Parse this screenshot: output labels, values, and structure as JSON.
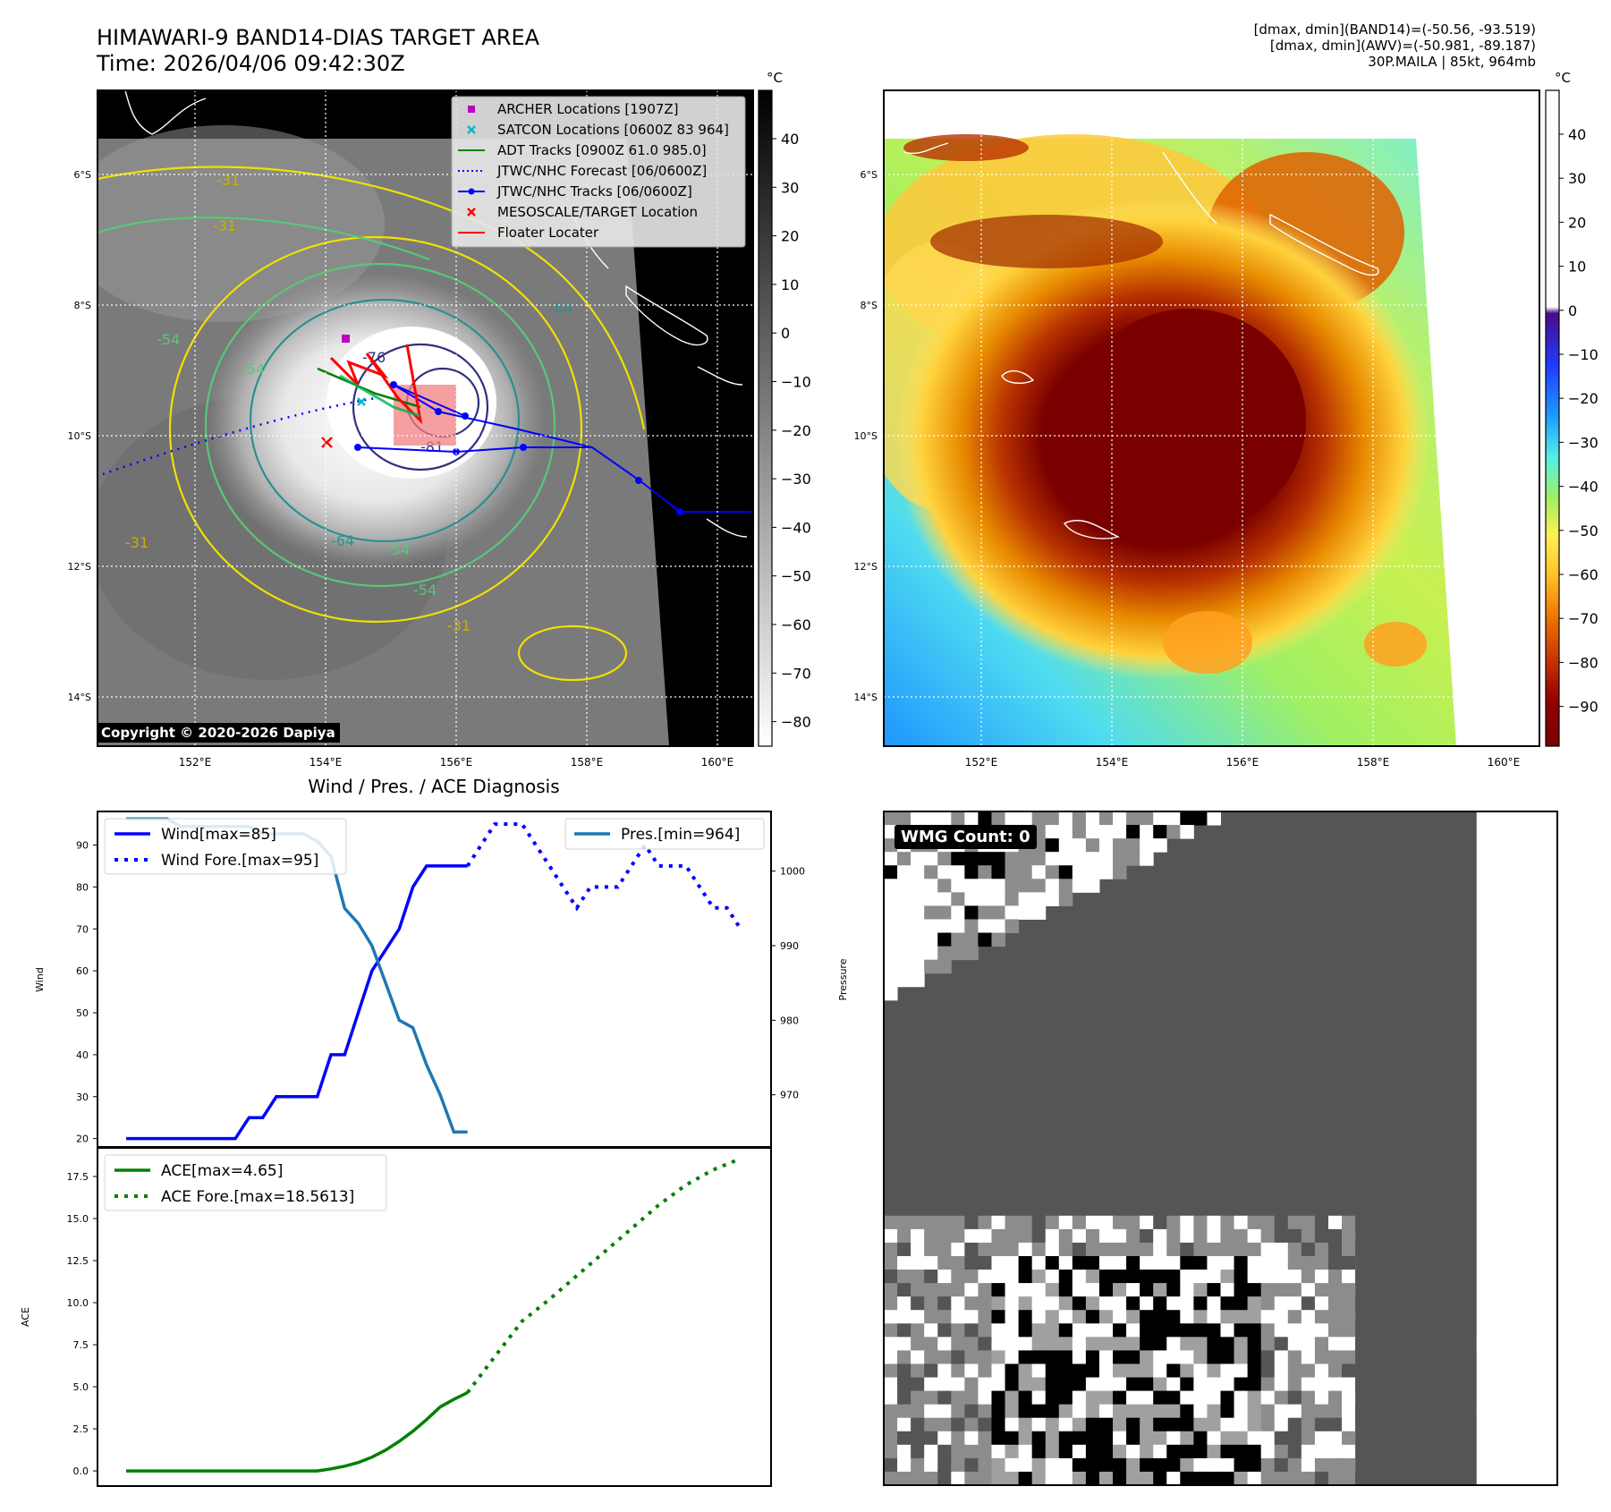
{
  "header": {
    "title_line1": "HIMAWARI-9 BAND14-DIAS TARGET AREA",
    "title_line2": "Time: 2026/04/06 09:42:30Z",
    "info_line1": "[dmax, dmin](BAND14)=(-50.56, -93.519)",
    "info_line2": "[dmax, dmin](AWV)=(-50.981, -89.187)",
    "info_line3": "30P.MAILA | 85kt, 964mb"
  },
  "copyright": "Copyright © 2020-2026 Dapiya",
  "wmg_count": "WMG Count: 0",
  "map": {
    "lon_ticks": [
      "152°E",
      "154°E",
      "156°E",
      "158°E",
      "160°E"
    ],
    "lat_ticks": [
      "6°S",
      "8°S",
      "10°S",
      "12°S",
      "14°S"
    ],
    "legend": [
      {
        "label": "ARCHER Locations [1907Z]",
        "color": "#c000c0",
        "kind": "square"
      },
      {
        "label": "SATCON Locations [0600Z 83 964]",
        "color": "#00b8c8",
        "kind": "x"
      },
      {
        "label": "ADT Tracks [0900Z 61.0 985.0]",
        "color": "#008000",
        "kind": "line"
      },
      {
        "label": "JTWC/NHC Forecast [06/0600Z]",
        "color": "#0000ff",
        "kind": "dotted"
      },
      {
        "label": "JTWC/NHC Tracks [06/0600Z]",
        "color": "#0000ff",
        "kind": "line-dot"
      },
      {
        "label": "MESOSCALE/TARGET Location",
        "color": "#ff0000",
        "kind": "x"
      },
      {
        "label": "Floater Locater",
        "color": "#ff0000",
        "kind": "line"
      }
    ],
    "contour_labels": [
      "-31",
      "-31",
      "-54",
      "-54",
      "-64",
      "-76",
      "-31",
      "-54",
      "-54",
      "-31",
      "-64",
      "-81"
    ]
  },
  "colorbar_gray": {
    "unit": "°C",
    "ticks": [
      "40",
      "30",
      "20",
      "10",
      "0",
      "−10",
      "−20",
      "−30",
      "−40",
      "−50",
      "−60",
      "−70",
      "−80"
    ]
  },
  "colorbar_color": {
    "unit": "°C",
    "ticks": [
      "40",
      "30",
      "20",
      "10",
      "0",
      "−10",
      "−20",
      "−30",
      "−40",
      "−50",
      "−60",
      "−70",
      "−80",
      "−90"
    ]
  },
  "chart_data": [
    {
      "type": "line",
      "title": "Wind / Pres. / ACE Diagnosis",
      "ylabel": "Wind",
      "ylabel_right": "Pressure",
      "y_ticks": [
        "20",
        "30",
        "40",
        "50",
        "60",
        "70",
        "80",
        "90"
      ],
      "y2_ticks": [
        "970",
        "980",
        "990",
        "1000"
      ],
      "ylim": [
        18,
        98
      ],
      "y2lim": [
        963,
        1008
      ],
      "legend_left": [
        "Wind[max=85]",
        "Wind Fore.[max=95]"
      ],
      "legend_right": [
        "Pres.[min=964]"
      ],
      "series": [
        {
          "name": "Wind[max=85]",
          "color": "#0000ff",
          "style": "solid",
          "x": [
            0,
            1,
            2,
            3,
            4,
            5,
            6,
            7,
            8,
            9,
            10,
            11,
            12,
            13,
            14,
            15,
            16,
            17,
            18,
            19,
            20,
            21,
            22,
            23,
            24,
            25
          ],
          "values": [
            20,
            20,
            20,
            20,
            20,
            20,
            20,
            20,
            20,
            25,
            25,
            30,
            30,
            30,
            30,
            40,
            40,
            50,
            60,
            65,
            70,
            80,
            85,
            85,
            85,
            85
          ]
        },
        {
          "name": "Wind Fore.[max=95]",
          "color": "#0000ff",
          "style": "dotted",
          "x": [
            25,
            26,
            27,
            28,
            29,
            30,
            31,
            32,
            33,
            34,
            35,
            36,
            37,
            38,
            39,
            40,
            41,
            42,
            43,
            44,
            45
          ],
          "values": [
            85,
            90,
            95,
            95,
            95,
            90,
            85,
            80,
            75,
            80,
            80,
            80,
            85,
            90,
            85,
            85,
            85,
            80,
            75,
            75,
            70
          ]
        },
        {
          "name": "Pres.[min=964]",
          "color": "#1f77b4",
          "style": "solid",
          "axis": "right",
          "x": [
            0,
            1,
            2,
            3,
            4,
            5,
            6,
            7,
            8,
            9,
            10,
            11,
            12,
            13,
            14,
            15,
            16,
            17,
            18,
            19,
            20,
            21,
            22,
            23,
            24,
            25
          ],
          "values": [
            1007,
            1007,
            1007,
            1007,
            1006,
            1006,
            1006,
            1006,
            1006,
            1006,
            1005,
            1005,
            1005,
            1005,
            1004,
            1002,
            995,
            993,
            990,
            985,
            980,
            979,
            974,
            970,
            965,
            965
          ]
        }
      ]
    },
    {
      "type": "line",
      "ylabel": "ACE",
      "y_ticks": [
        "0.0",
        "2.5",
        "5.0",
        "7.5",
        "10.0",
        "12.5",
        "15.0",
        "17.5"
      ],
      "ylim": [
        -0.9,
        19.2
      ],
      "legend": [
        "ACE[max=4.65]",
        "ACE Fore.[max=18.5613]"
      ],
      "series": [
        {
          "name": "ACE[max=4.65]",
          "color": "#008000",
          "style": "solid",
          "x": [
            0,
            14,
            15,
            16,
            17,
            18,
            19,
            20,
            21,
            22,
            23,
            24,
            25
          ],
          "values": [
            0,
            0,
            0.12,
            0.28,
            0.5,
            0.82,
            1.24,
            1.76,
            2.36,
            3.05,
            3.8,
            4.25,
            4.65
          ]
        },
        {
          "name": "ACE Fore.[max=18.5613]",
          "color": "#008000",
          "style": "dotted",
          "x": [
            25,
            27,
            29,
            31,
            33,
            35,
            37,
            39,
            41,
            43,
            45
          ],
          "values": [
            4.65,
            6.8,
            8.9,
            10.2,
            11.6,
            13.0,
            14.4,
            15.8,
            17.0,
            17.9,
            18.56
          ]
        }
      ]
    }
  ]
}
